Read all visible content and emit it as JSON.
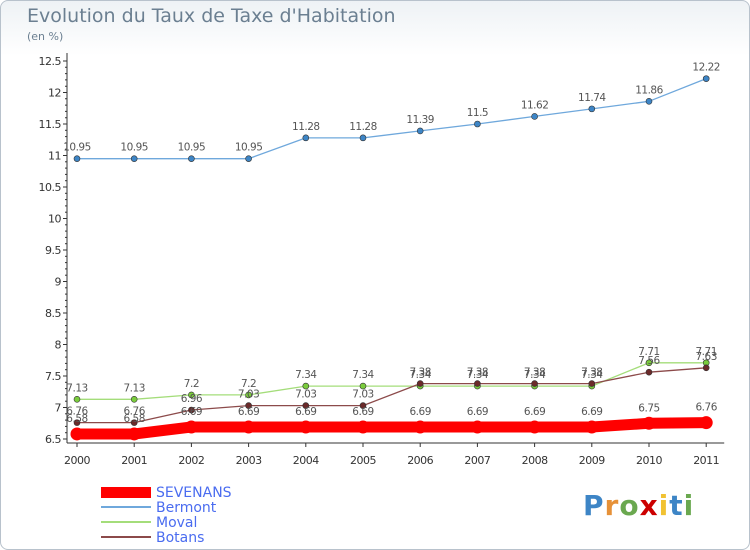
{
  "title": "Evolution du Taux de Taxe d'Habitation",
  "unit_label": "(en %)",
  "logo_text": "Proxiti",
  "chart_data": {
    "type": "line",
    "title": "Evolution du Taux de Taxe d'Habitation",
    "ylabel": "(en %)",
    "xlabel": "",
    "categories": [
      "2000",
      "2001",
      "2002",
      "2003",
      "2004",
      "2005",
      "2006",
      "2007",
      "2008",
      "2009",
      "2010",
      "2011"
    ],
    "ylim": [
      6.5,
      12.5
    ],
    "yticks": [
      "6.5",
      "7",
      "7.5",
      "8",
      "8.5",
      "9",
      "9.5",
      "10",
      "10.5",
      "11",
      "11.5",
      "12",
      "12.5"
    ],
    "grid": false,
    "legend_position": "bottom-left",
    "series": [
      {
        "name": "SEVENANS",
        "color": "#ff0000",
        "marker_color": "#ff0000",
        "values": [
          6.58,
          6.58,
          6.69,
          6.69,
          6.69,
          6.69,
          6.69,
          6.69,
          6.69,
          6.69,
          6.75,
          6.76
        ],
        "labels": [
          "6.58",
          "6.58",
          "6.69",
          "6.69",
          "6.69",
          "6.69",
          "6.69",
          "6.69",
          "6.69",
          "6.69",
          "6.75",
          "6.76"
        ]
      },
      {
        "name": "Bermont",
        "color": "#6fa8dc",
        "marker_color": "#3d85c6",
        "values": [
          10.95,
          10.95,
          10.95,
          10.95,
          11.28,
          11.28,
          11.39,
          11.5,
          11.62,
          11.74,
          11.86,
          12.22
        ],
        "labels": [
          "10.95",
          "10.95",
          "10.95",
          "10.95",
          "11.28",
          "11.28",
          "11.39",
          "11.5",
          "11.62",
          "11.74",
          "11.86",
          "12.22"
        ]
      },
      {
        "name": "Moval",
        "color": "#a4dd7a",
        "marker_color": "#7acc3c",
        "values": [
          7.13,
          7.13,
          7.2,
          7.2,
          7.34,
          7.34,
          7.34,
          7.34,
          7.34,
          7.34,
          7.71,
          7.71
        ],
        "labels": [
          "7.13",
          "7.13",
          "7.2",
          "7.2",
          "7.34",
          "7.34",
          "7.34",
          "7.34",
          "7.34",
          "7.34",
          "7.71",
          "7.71"
        ]
      },
      {
        "name": "Botans",
        "color": "#8c4a4a",
        "marker_color": "#6b2a2a",
        "values": [
          6.76,
          6.76,
          6.96,
          7.03,
          7.03,
          7.03,
          7.38,
          7.38,
          7.38,
          7.38,
          7.56,
          7.63
        ],
        "labels": [
          "6.76",
          "6.76",
          "6.96",
          "7.03",
          "7.03",
          "7.03",
          "7.38",
          "7.38",
          "7.38",
          "7.38",
          "7.56",
          "7.63"
        ]
      }
    ]
  }
}
